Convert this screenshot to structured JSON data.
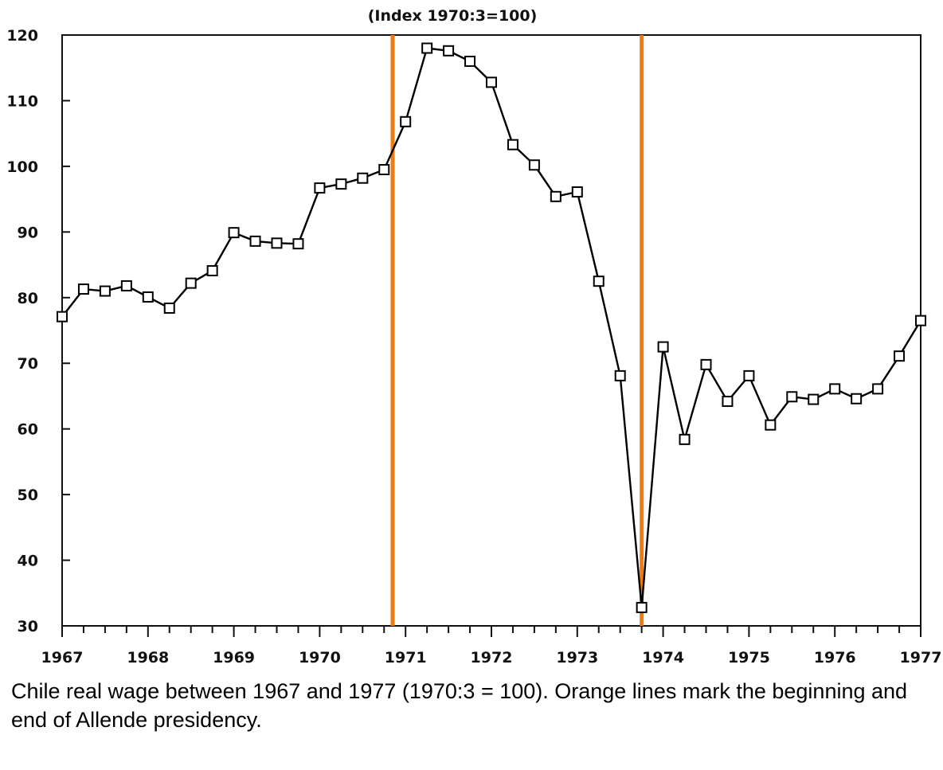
{
  "chart_data": {
    "type": "line",
    "title": "(Index 1970:3=100)",
    "xlabel": "",
    "ylabel": "",
    "xlim": [
      1967,
      1977
    ],
    "ylim": [
      30,
      120
    ],
    "x_ticks": [
      1967,
      1968,
      1969,
      1970,
      1971,
      1972,
      1973,
      1974,
      1975,
      1976,
      1977
    ],
    "x_tick_labels": [
      "1967",
      "1968",
      "1969",
      "1970",
      "1971",
      "1972",
      "1973",
      "1974",
      "1975",
      "1976",
      "1977"
    ],
    "y_ticks": [
      30,
      40,
      50,
      60,
      70,
      80,
      90,
      100,
      110,
      120
    ],
    "y_tick_labels": [
      "30",
      "40",
      "50",
      "60",
      "70",
      "80",
      "90",
      "100",
      "110",
      "120"
    ],
    "grid": false,
    "series": [
      {
        "marker": "square",
        "color": "#000000",
        "x": [
          1967.0,
          1967.25,
          1967.5,
          1967.75,
          1968.0,
          1968.25,
          1968.5,
          1968.75,
          1969.0,
          1969.25,
          1969.5,
          1969.75,
          1970.0,
          1970.25,
          1970.5,
          1970.75,
          1971.0,
          1971.25,
          1971.5,
          1971.75,
          1972.0,
          1972.25,
          1972.5,
          1972.75,
          1973.0,
          1973.25,
          1973.5,
          1973.75,
          1974.0,
          1974.25,
          1974.5,
          1974.75,
          1975.0,
          1975.25,
          1975.5,
          1975.75,
          1976.0,
          1976.25,
          1976.5,
          1976.75,
          1977.0
        ],
        "y": [
          77.1,
          81.3,
          81.0,
          81.8,
          80.1,
          78.4,
          82.2,
          84.1,
          89.9,
          88.6,
          88.3,
          88.2,
          96.7,
          97.3,
          98.2,
          99.5,
          106.8,
          118.0,
          117.6,
          116.0,
          112.8,
          103.3,
          100.2,
          95.4,
          96.1,
          82.5,
          68.1,
          32.8,
          72.5,
          58.4,
          69.8,
          64.2,
          68.1,
          60.6,
          64.9,
          64.5,
          66.1,
          64.6,
          66.1,
          71.1,
          76.5
        ]
      }
    ],
    "vertical_markers": [
      {
        "x": 1970.85,
        "color": "#f07a10"
      },
      {
        "x": 1973.75,
        "color": "#f07a10"
      }
    ]
  },
  "caption": "Chile real wage between 1967 and 1977 (1970:3 = 100). Orange lines mark the beginning and end of Allende presidency."
}
